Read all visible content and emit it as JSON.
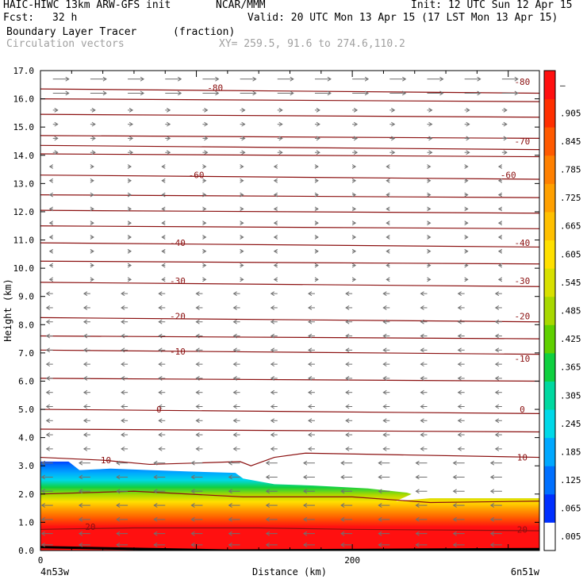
{
  "header": {
    "model": "HAIC-HIWC 13km ARW-GFS init",
    "org": "NCAR/MMM",
    "init": "Init: 12 UTC Sun 12 Apr 15",
    "fcst_label": "Fcst:",
    "fcst_value": "32 h",
    "valid": "Valid: 20 UTC Mon 13 Apr 15 (17 LST Mon 13 Apr 15)",
    "field_name": "Boundary Layer Tracer",
    "field_units": "(fraction)",
    "vector_label": "Circulation vectors",
    "xy_label": "XY= 259.5, 91.6 to 274.6,110.2"
  },
  "chart_data": {
    "type": "heatmap",
    "ylabel": "Height (km)",
    "xlabel": "Distance (km)",
    "left_label": "4n53w",
    "right_label": "6n51w",
    "ylim": [
      0,
      17
    ],
    "xlim": [
      0,
      320
    ],
    "y_ticks": [
      "0.0",
      "1.0",
      "2.0",
      "3.0",
      "4.0",
      "5.0",
      "6.0",
      "7.0",
      "8.0",
      "9.0",
      "10.0",
      "11.0",
      "12.0",
      "13.0",
      "14.0",
      "15.0",
      "16.0",
      "17.0"
    ],
    "x_ticks": [
      {
        "value": 0,
        "label": "0"
      },
      {
        "value": 200,
        "label": "200"
      }
    ],
    "colorbar": {
      "labels": [
        ".005",
        ".065",
        ".125",
        ".185",
        ".245",
        ".305",
        ".365",
        ".425",
        ".485",
        ".545",
        ".605",
        ".665",
        ".725",
        ".785",
        ".845",
        ".905",
        "–"
      ],
      "colors": [
        "#ffffff",
        "#0030ff",
        "#0070ff",
        "#00a8ff",
        "#00d8e8",
        "#00d8a0",
        "#10d040",
        "#60d000",
        "#a8d800",
        "#d8e000",
        "#ffe000",
        "#ffc000",
        "#ffa000",
        "#ff8000",
        "#ff5a00",
        "#ff3000",
        "#ff1010"
      ]
    },
    "isotherms": [
      {
        "label": "-80",
        "label_pos": [
          {
            "x": 112,
            "y": 16.4
          },
          {
            "x": 309,
            "y": 16.6
          }
        ]
      },
      {
        "label": "-70",
        "label_pos": [
          {
            "x": 309,
            "y": 14.5
          }
        ]
      },
      {
        "label": "-60",
        "label_pos": [
          {
            "x": 100,
            "y": 13.3
          },
          {
            "x": 300,
            "y": 13.3
          }
        ]
      },
      {
        "label": "-40",
        "label_pos": [
          {
            "x": 88,
            "y": 10.9
          },
          {
            "x": 309,
            "y": 10.9
          }
        ]
      },
      {
        "label": "-30",
        "label_pos": [
          {
            "x": 88,
            "y": 9.55
          },
          {
            "x": 309,
            "y": 9.55
          }
        ]
      },
      {
        "label": "-20",
        "label_pos": [
          {
            "x": 88,
            "y": 8.3
          },
          {
            "x": 309,
            "y": 8.3
          }
        ]
      },
      {
        "label": "-10",
        "label_pos": [
          {
            "x": 88,
            "y": 7.05
          },
          {
            "x": 309,
            "y": 6.8
          }
        ]
      },
      {
        "label": "0",
        "label_pos": [
          {
            "x": 76,
            "y": 5.0
          },
          {
            "x": 309,
            "y": 5.0
          }
        ]
      },
      {
        "label": "10",
        "label_pos": [
          {
            "x": 42,
            "y": 3.2
          },
          {
            "x": 309,
            "y": 3.3
          }
        ]
      },
      {
        "label": "20",
        "label_pos": [
          {
            "x": 32,
            "y": 0.85
          },
          {
            "x": 309,
            "y": 0.75
          }
        ]
      }
    ],
    "plain_contours": [
      16.0,
      15.45,
      14.7,
      14.05,
      12.6,
      12.05,
      11.5,
      10.25,
      7.6,
      6.1,
      4.3
    ],
    "tracer_top": [
      [
        0,
        3.15
      ],
      [
        18,
        3.15
      ],
      [
        25,
        2.85
      ],
      [
        45,
        2.9
      ],
      [
        70,
        2.85
      ],
      [
        95,
        2.8
      ],
      [
        125,
        2.75
      ],
      [
        130,
        2.55
      ],
      [
        150,
        2.35
      ],
      [
        175,
        2.3
      ],
      [
        210,
        2.2
      ],
      [
        235,
        2.05
      ],
      [
        238,
        2.0
      ],
      [
        228,
        1.75
      ],
      [
        250,
        1.85
      ],
      [
        320,
        1.85
      ]
    ],
    "vector_rows": [
      16.7,
      16.2,
      15.6,
      15.1,
      14.6,
      14.1,
      13.6,
      13.1,
      12.6,
      12.1,
      11.6,
      11.1,
      10.6,
      10.1,
      9.6,
      9.1,
      8.6,
      8.1,
      7.6,
      7.1,
      6.6,
      6.1,
      5.6,
      5.1,
      4.6,
      4.1,
      3.6,
      3.1,
      2.6,
      2.1,
      1.6,
      1.1,
      0.6,
      0.2
    ]
  }
}
